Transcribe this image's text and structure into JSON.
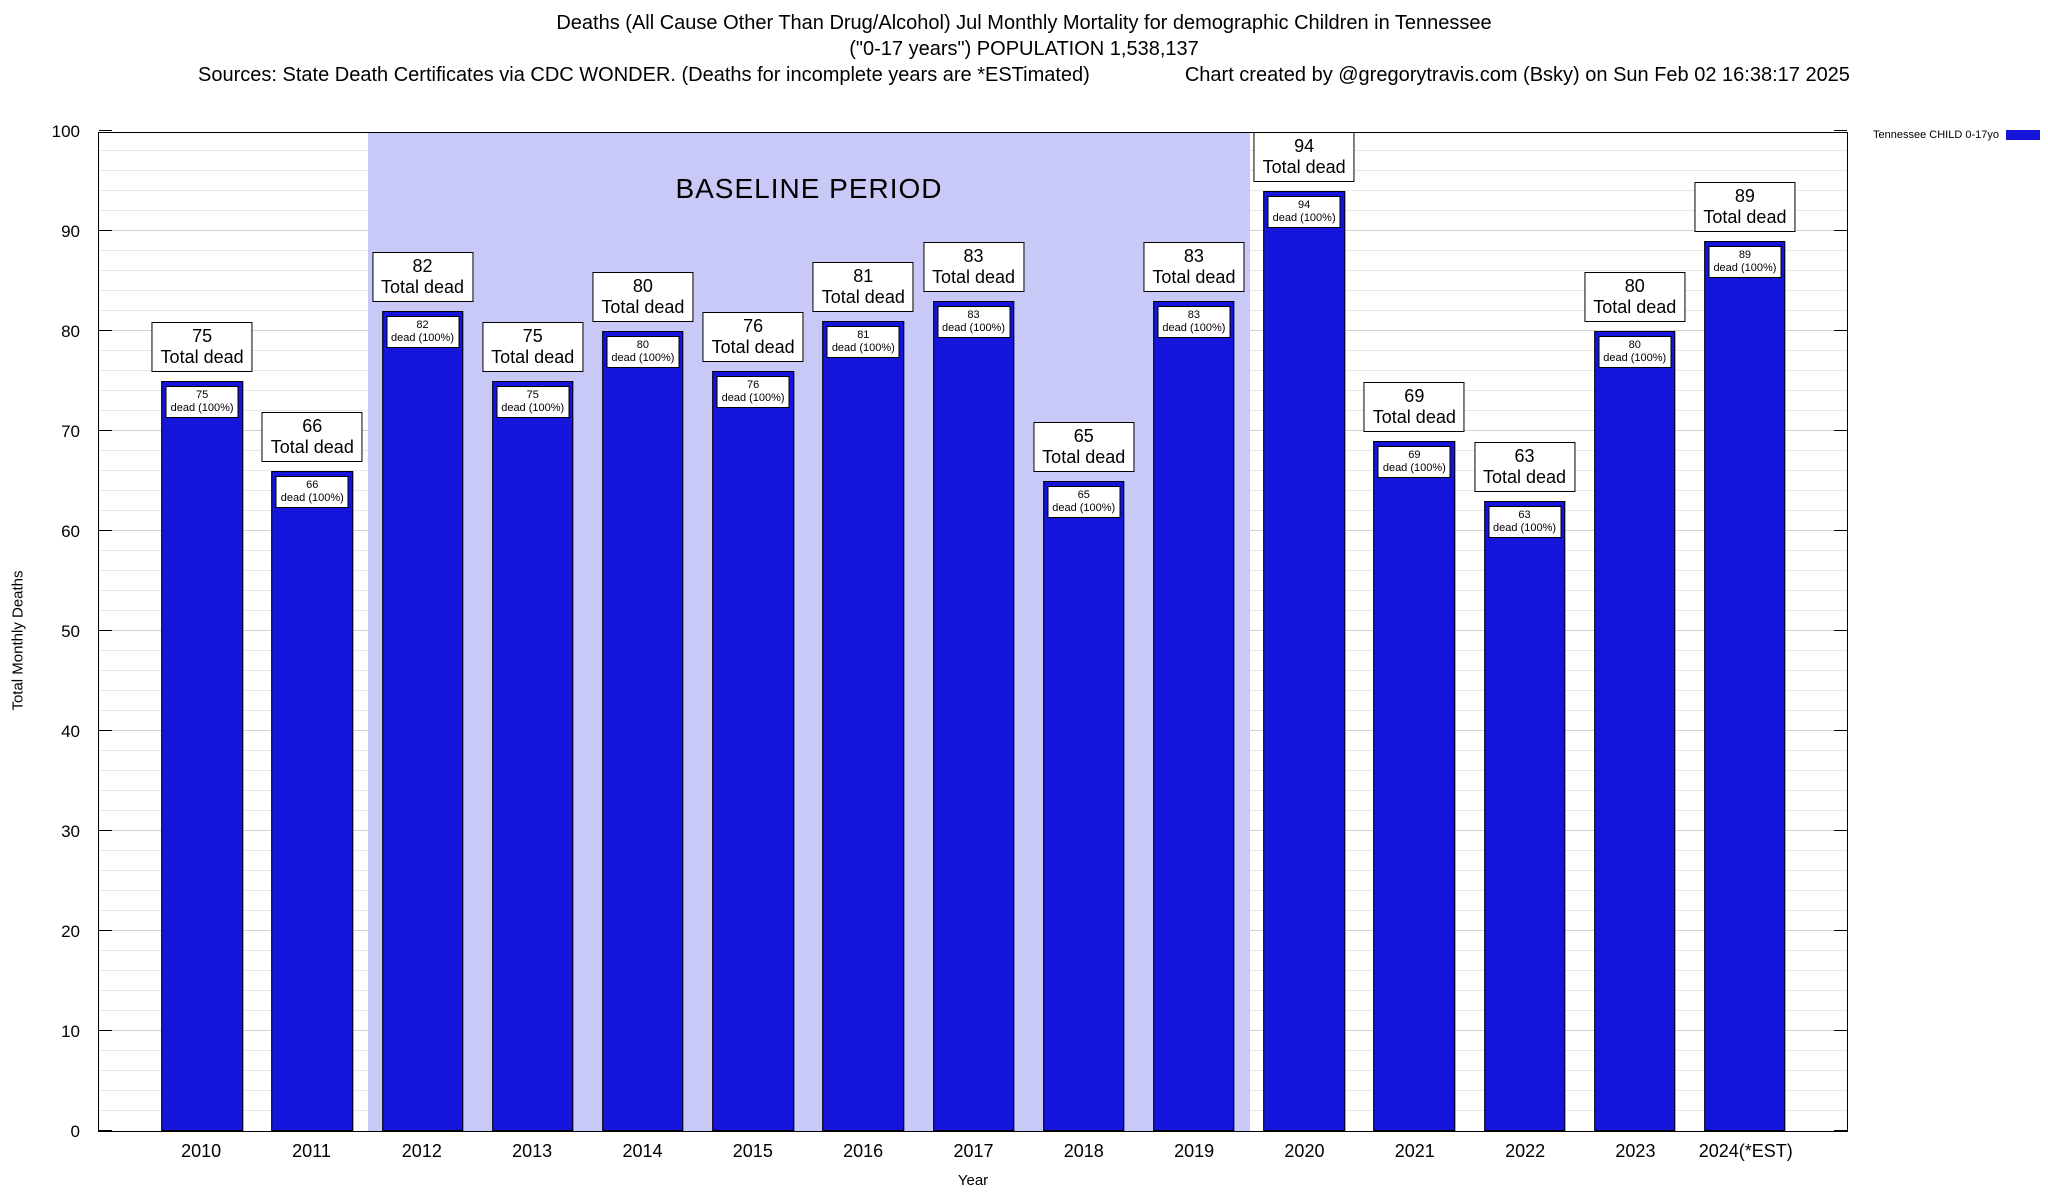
{
  "header": {
    "title_line1": "Deaths (All Cause Other Than Drug/Alcohol) Jul Monthly Mortality for demographic Children in Tennessee",
    "title_line2": "(\"0-17 years\") POPULATION 1,538,137",
    "sources": "Sources: State Death Certificates via CDC WONDER. (Deaths for incomplete years are *ESTimated)",
    "credit": "Chart created by @gregorytravis.com (Bsky) on Sun Feb 02 16:38:17 2025"
  },
  "legend": {
    "label": "Tennessee CHILD 0-17yo",
    "color": "#1414db"
  },
  "chart_data": {
    "type": "bar",
    "title": "Deaths (All Cause Other Than Drug/Alcohol) Jul Monthly Mortality for demographic Children in Tennessee",
    "subtitle": "(\"0-17 years\") POPULATION 1,538,137",
    "xlabel": "Year",
    "ylabel": "Total Monthly Deaths",
    "ylim": [
      0,
      100
    ],
    "y_ticks": [
      0,
      10,
      20,
      30,
      40,
      50,
      60,
      70,
      80,
      90,
      100
    ],
    "grid": true,
    "grid_minor_step": 2,
    "grid_major_step": 10,
    "legend_position": "top-right",
    "bar_color": "#1414db",
    "categories": [
      "2010",
      "2011",
      "2012",
      "2013",
      "2014",
      "2015",
      "2016",
      "2017",
      "2018",
      "2019",
      "2020",
      "2021",
      "2022",
      "2023",
      "2024(*EST)"
    ],
    "values": [
      75,
      66,
      82,
      75,
      80,
      76,
      81,
      83,
      65,
      83,
      94,
      69,
      63,
      80,
      89
    ],
    "bar_label_text": "Total dead",
    "bar_sublabel_text": "dead (100%)",
    "baseline": {
      "label": "BASELINE PERIOD",
      "start_category": "2012",
      "end_category": "2019",
      "color": "#c9c9f7"
    }
  }
}
